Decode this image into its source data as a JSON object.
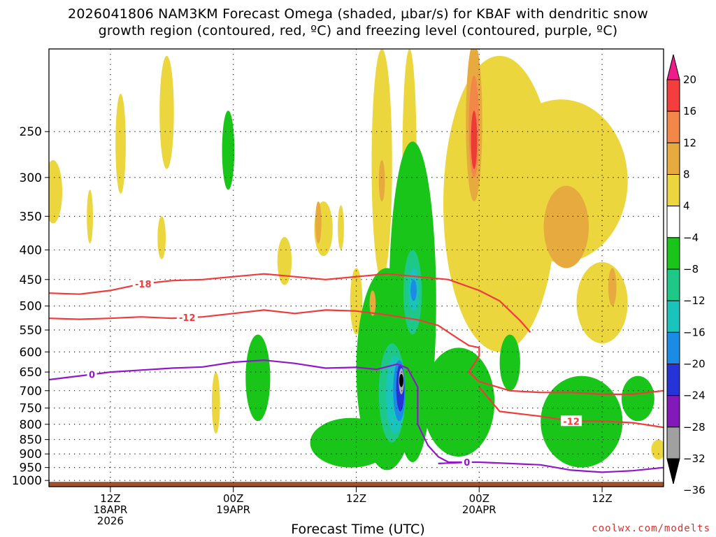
{
  "title": {
    "line1": "2026041806 NAM3KM Forecast Omega (shaded, µbar/s) for KBAF with dendritic snow",
    "line2": "growth region (contoured, red, ºC) and freezing level (contoured, purple, ºC)"
  },
  "credit": "coolwx.com/modelts",
  "chart_data": {
    "type": "heatmap",
    "title": "2026041806 NAM3KM Forecast Omega (shaded, µbar/s) for KBAF with dendritic snow growth region (contoured, red, ºC) and freezing level (contoured, purple, ºC)",
    "xlabel": "Forecast Time (UTC)",
    "ylabel": "",
    "y_scale": "log pressure (hPa), inverted",
    "ylim": [
      1025,
      180
    ],
    "xlim_hours_from_start": [
      0,
      60
    ],
    "x_ticks": [
      {
        "hour": 6,
        "labels": [
          "12Z",
          "18APR",
          "2026"
        ]
      },
      {
        "hour": 18,
        "labels": [
          "00Z",
          "19APR"
        ]
      },
      {
        "hour": 30,
        "labels": [
          "12Z"
        ]
      },
      {
        "hour": 42,
        "labels": [
          "00Z",
          "20APR"
        ]
      },
      {
        "hour": 54,
        "labels": [
          "12Z"
        ]
      }
    ],
    "y_ticks": [
      250,
      300,
      350,
      400,
      450,
      500,
      550,
      600,
      650,
      700,
      750,
      800,
      850,
      900,
      950,
      1000
    ],
    "grid": true,
    "colorbar": {
      "labels": [
        "20",
        "16",
        "12",
        "8",
        "4",
        "−4",
        "−8",
        "−12",
        "−16",
        "−20",
        "−24",
        "−28",
        "−32",
        "−36"
      ],
      "colors": [
        "#ee1d89",
        "#f43d3d",
        "#f3874a",
        "#e7aa3f",
        "#ecd63e",
        "#ffffff",
        "#19c519",
        "#1ec888",
        "#1ac4bd",
        "#1a8ce5",
        "#2634d7",
        "#8319b8",
        "#a0a0a0",
        "#000000"
      ],
      "bounds": [
        20,
        16,
        12,
        8,
        4,
        -4,
        -8,
        -12,
        -16,
        -20,
        -24,
        -28,
        -32,
        -36
      ]
    },
    "contours": [
      {
        "name": "-18",
        "color": "#ef3b3b",
        "label_at_hour": 9.2,
        "points": [
          [
            0,
            475
          ],
          [
            3,
            477
          ],
          [
            6,
            470
          ],
          [
            9,
            458
          ],
          [
            12,
            452
          ],
          [
            15,
            450
          ],
          [
            18,
            445
          ],
          [
            21,
            440
          ],
          [
            24,
            445
          ],
          [
            27,
            450
          ],
          [
            30,
            445
          ],
          [
            33,
            440
          ],
          [
            36,
            445
          ],
          [
            39,
            450
          ],
          [
            42,
            470
          ],
          [
            44,
            490
          ],
          [
            46,
            530
          ],
          [
            47,
            555
          ]
        ]
      },
      {
        "name": "-12",
        "color": "#ef3b3b",
        "label_at_hour": 13.5,
        "points": [
          [
            0,
            525
          ],
          [
            3,
            527
          ],
          [
            6,
            525
          ],
          [
            9,
            522
          ],
          [
            12,
            525
          ],
          [
            15,
            522
          ],
          [
            18,
            515
          ],
          [
            21,
            508
          ],
          [
            24,
            515
          ],
          [
            27,
            508
          ],
          [
            30,
            510
          ],
          [
            33,
            518
          ],
          [
            36,
            528
          ],
          [
            38,
            540
          ],
          [
            40,
            570
          ],
          [
            41,
            585
          ],
          [
            42,
            590
          ],
          [
            42,
            610
          ],
          [
            41,
            650
          ],
          [
            42,
            675
          ],
          [
            45,
            700
          ],
          [
            48,
            705
          ],
          [
            51,
            705
          ],
          [
            54,
            710
          ],
          [
            57,
            710
          ],
          [
            60,
            700
          ]
        ]
      },
      {
        "name": "-12",
        "color": "#ef3b3b",
        "label_at_hour": 51,
        "points": [
          [
            42,
            690
          ],
          [
            44,
            760
          ],
          [
            48,
            775
          ],
          [
            51,
            790
          ],
          [
            54,
            790
          ],
          [
            57,
            795
          ],
          [
            60,
            810
          ]
        ]
      },
      {
        "name": "0",
        "color": "#9018c8",
        "label_at_hour": 4.2,
        "points": [
          [
            0,
            670
          ],
          [
            3,
            660
          ],
          [
            6,
            650
          ],
          [
            9,
            645
          ],
          [
            12,
            640
          ],
          [
            15,
            637
          ],
          [
            18,
            625
          ],
          [
            21,
            620
          ],
          [
            24,
            628
          ],
          [
            27,
            640
          ],
          [
            30,
            638
          ],
          [
            32,
            643
          ],
          [
            34,
            630
          ],
          [
            35,
            640
          ],
          [
            36,
            690
          ],
          [
            36,
            800
          ],
          [
            37,
            870
          ],
          [
            38,
            910
          ],
          [
            39,
            930
          ],
          [
            42,
            930
          ],
          [
            45,
            935
          ],
          [
            48,
            940
          ],
          [
            51,
            960
          ],
          [
            54,
            968
          ],
          [
            57,
            962
          ],
          [
            60,
            950
          ]
        ]
      },
      {
        "name": "0",
        "color": "#9018c8",
        "label_at_hour": 40.8,
        "points": [
          [
            38,
            935
          ],
          [
            41,
            930
          ]
        ]
      }
    ],
    "omega_fields": [
      {
        "value": 6,
        "hour": 0.4,
        "p_top": 280,
        "p_bot": 360,
        "hw": 0.9
      },
      {
        "value": 6,
        "hour": 7,
        "p_top": 215,
        "p_bot": 320,
        "hw": 0.5
      },
      {
        "value": 6,
        "hour": 11.5,
        "p_top": 185,
        "p_bot": 290,
        "hw": 0.7
      },
      {
        "value": 6,
        "hour": 4,
        "p_top": 315,
        "p_bot": 390,
        "hw": 0.3
      },
      {
        "value": 6,
        "hour": 11,
        "p_top": 350,
        "p_bot": 415,
        "hw": 0.4
      },
      {
        "value": 6,
        "hour": 16.3,
        "p_top": 650,
        "p_bot": 830,
        "hw": 0.4
      },
      {
        "value": 6,
        "hour": 23,
        "p_top": 380,
        "p_bot": 460,
        "hw": 0.7
      },
      {
        "value": 6,
        "hour": 26.8,
        "p_top": 330,
        "p_bot": 410,
        "hw": 0.9
      },
      {
        "value": 6,
        "hour": 28.5,
        "p_top": 335,
        "p_bot": 400,
        "hw": 0.3
      },
      {
        "value": 6,
        "hour": 30,
        "p_top": 430,
        "p_bot": 560,
        "hw": 0.6
      },
      {
        "value": 6,
        "hour": 32.5,
        "p_top": 180,
        "p_bot": 450,
        "hw": 1.0
      },
      {
        "value": 6,
        "hour": 35.2,
        "p_top": 180,
        "p_bot": 450,
        "hw": 0.7
      },
      {
        "value": 6,
        "hour": 44,
        "p_top": 185,
        "p_bot": 600,
        "hw": 5.5
      },
      {
        "value": 6,
        "hour": 50,
        "p_top": 220,
        "p_bot": 420,
        "hw": 6.5
      },
      {
        "value": 6,
        "hour": 54,
        "p_top": 420,
        "p_bot": 580,
        "hw": 2.5
      },
      {
        "value": 6,
        "hour": 59.5,
        "p_top": 850,
        "p_bot": 920,
        "hw": 0.7
      },
      {
        "value": 10,
        "hour": 32.5,
        "p_top": 280,
        "p_bot": 330,
        "hw": 0.3
      },
      {
        "value": 10,
        "hour": 31.6,
        "p_top": 470,
        "p_bot": 520,
        "hw": 0.3
      },
      {
        "value": 10,
        "hour": 26.3,
        "p_top": 330,
        "p_bot": 390,
        "hw": 0.3
      },
      {
        "value": 10,
        "hour": 41.5,
        "p_top": 175,
        "p_bot": 330,
        "hw": 0.8
      },
      {
        "value": 10,
        "hour": 50.5,
        "p_top": 310,
        "p_bot": 430,
        "hw": 2.2
      },
      {
        "value": 10,
        "hour": 55,
        "p_top": 430,
        "p_bot": 500,
        "hw": 0.4
      },
      {
        "value": 15,
        "hour": 41.5,
        "p_top": 200,
        "p_bot": 300,
        "hw": 0.5
      },
      {
        "value": 18,
        "hour": 41.5,
        "p_top": 230,
        "p_bot": 290,
        "hw": 0.3
      },
      {
        "value": -6,
        "hour": 17.5,
        "p_top": 230,
        "p_bot": 315,
        "hw": 0.6
      },
      {
        "value": -6,
        "hour": 20.4,
        "p_top": 560,
        "p_bot": 790,
        "hw": 1.2
      },
      {
        "value": -6,
        "hour": 33,
        "p_top": 430,
        "p_bot": 960,
        "hw": 3.0
      },
      {
        "value": -6,
        "hour": 35.5,
        "p_top": 260,
        "p_bot": 930,
        "hw": 2.3
      },
      {
        "value": -6,
        "hour": 29.5,
        "p_top": 780,
        "p_bot": 950,
        "hw": 4.0
      },
      {
        "value": -6,
        "hour": 40,
        "p_top": 590,
        "p_bot": 910,
        "hw": 3.5
      },
      {
        "value": -6,
        "hour": 45,
        "p_top": 560,
        "p_bot": 700,
        "hw": 1.0
      },
      {
        "value": -6,
        "hour": 52,
        "p_top": 660,
        "p_bot": 950,
        "hw": 4.0
      },
      {
        "value": -6,
        "hour": 57.5,
        "p_top": 660,
        "p_bot": 790,
        "hw": 1.6
      },
      {
        "value": -10,
        "hour": 33,
        "p_top": 500,
        "p_bot": 900,
        "hw": 2.0
      },
      {
        "value": -10,
        "hour": 35.6,
        "p_top": 330,
        "p_bot": 850,
        "hw": 1.4
      },
      {
        "value": -10,
        "hour": 30,
        "p_top": 860,
        "p_bot": 940,
        "hw": 2.0
      },
      {
        "value": -10,
        "hour": 40,
        "p_top": 760,
        "p_bot": 870,
        "hw": 2.0
      },
      {
        "value": -10,
        "hour": 52,
        "p_top": 710,
        "p_bot": 860,
        "hw": 3.0
      },
      {
        "value": -14,
        "hour": 33.5,
        "p_top": 580,
        "p_bot": 860,
        "hw": 1.3
      },
      {
        "value": -14,
        "hour": 35.5,
        "p_top": 400,
        "p_bot": 560,
        "hw": 0.9
      },
      {
        "value": -18,
        "hour": 33.8,
        "p_top": 610,
        "p_bot": 830,
        "hw": 0.9
      },
      {
        "value": -18,
        "hour": 35.6,
        "p_top": 430,
        "p_bot": 510,
        "hw": 0.5
      },
      {
        "value": -22,
        "hour": 34.2,
        "p_top": 620,
        "p_bot": 790,
        "hw": 0.6
      },
      {
        "value": -22,
        "hour": 35.6,
        "p_top": 450,
        "p_bot": 490,
        "hw": 0.3
      },
      {
        "value": -26,
        "hour": 34.3,
        "p_top": 630,
        "p_bot": 760,
        "hw": 0.4
      },
      {
        "value": -34,
        "hour": 34.4,
        "p_top": 640,
        "p_bot": 710,
        "hw": 0.25
      },
      {
        "value": -40,
        "hour": 34.4,
        "p_top": 655,
        "p_bot": 690,
        "hw": 0.12
      }
    ]
  }
}
